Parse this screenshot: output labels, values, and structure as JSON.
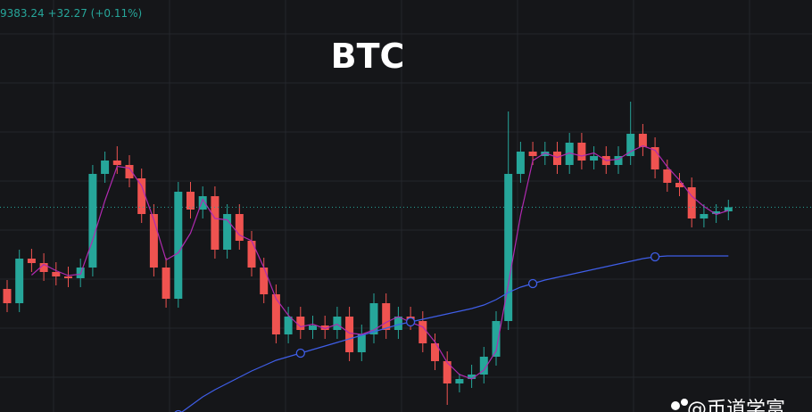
{
  "header": {
    "quote": "9383.24 +32.27 (+0.11%)"
  },
  "watermark": "@币道学富",
  "chart_data": {
    "type": "candlestick",
    "title": "BTC",
    "ylim": [
      8924,
      9848
    ],
    "up_color": "#26a69a",
    "down_color": "#ef5350",
    "grid": true,
    "open": [
      9200,
      9168,
      9268,
      9258,
      9238,
      9228,
      9224,
      9248,
      9458,
      9488,
      9478,
      9448,
      9368,
      9248,
      9178,
      9418,
      9378,
      9408,
      9288,
      9368,
      9308,
      9248,
      9188,
      9098,
      9138,
      9108,
      9118,
      9108,
      9138,
      9058,
      9098,
      9168,
      9108,
      9138,
      9128,
      9078,
      9038,
      8988,
      8998,
      9008,
      9048,
      9128,
      9458,
      9508,
      9498,
      9508,
      9478,
      9528,
      9488,
      9498,
      9478,
      9498,
      9548,
      9518,
      9468,
      9438,
      9428,
      9358,
      9368,
      9374
    ],
    "high": [
      9220,
      9288,
      9290,
      9280,
      9260,
      9250,
      9268,
      9478,
      9508,
      9520,
      9500,
      9470,
      9390,
      9270,
      9440,
      9440,
      9430,
      9430,
      9390,
      9390,
      9330,
      9270,
      9210,
      9160,
      9160,
      9140,
      9140,
      9160,
      9160,
      9120,
      9190,
      9190,
      9160,
      9160,
      9150,
      9100,
      9060,
      9010,
      9030,
      9070,
      9150,
      9598,
      9530,
      9530,
      9530,
      9530,
      9550,
      9550,
      9520,
      9520,
      9520,
      9620,
      9570,
      9540,
      9490,
      9460,
      9450,
      9390,
      9390,
      9400
    ],
    "low": [
      9148,
      9148,
      9238,
      9218,
      9208,
      9204,
      9204,
      9228,
      9438,
      9458,
      9428,
      9348,
      9228,
      9158,
      9158,
      9358,
      9358,
      9268,
      9268,
      9288,
      9228,
      9168,
      9078,
      9078,
      9088,
      9088,
      9088,
      9088,
      9038,
      9038,
      9078,
      9088,
      9088,
      9108,
      9058,
      9018,
      8940,
      8968,
      8978,
      8988,
      9028,
      9108,
      9438,
      9478,
      9478,
      9458,
      9458,
      9468,
      9468,
      9458,
      9458,
      9478,
      9498,
      9448,
      9418,
      9408,
      9338,
      9338,
      9348,
      9354
    ],
    "close": [
      9168,
      9268,
      9258,
      9238,
      9228,
      9224,
      9248,
      9458,
      9488,
      9478,
      9448,
      9368,
      9248,
      9178,
      9418,
      9378,
      9408,
      9288,
      9368,
      9308,
      9248,
      9188,
      9098,
      9138,
      9108,
      9118,
      9108,
      9138,
      9058,
      9098,
      9168,
      9108,
      9138,
      9128,
      9078,
      9038,
      8988,
      8998,
      9008,
      9048,
      9128,
      9458,
      9508,
      9498,
      9508,
      9478,
      9528,
      9488,
      9498,
      9478,
      9498,
      9548,
      9518,
      9468,
      9438,
      9428,
      9358,
      9368,
      9374,
      9383.24
    ],
    "series": [
      {
        "color": "#b02ab0",
        "values": [
          null,
          null,
          9231,
          9255,
          9241,
          9230,
          9233,
          9310,
          9398,
          9475,
          9471,
          9431,
          9355,
          9265,
          9281,
          9325,
          9401,
          9358,
          9355,
          9321,
          9308,
          9248,
          9178,
          9141,
          9115,
          9121,
          9111,
          9121,
          9101,
          9098,
          9108,
          9125,
          9138,
          9125,
          9115,
          9081,
          9035,
          9008,
          8998,
          9018,
          9061,
          9211,
          9365,
          9488,
          9505,
          9495,
          9505,
          9498,
          9505,
          9488,
          9491,
          9508,
          9521,
          9511,
          9474,
          9444,
          9408,
          9385,
          9367,
          9376
        ]
      },
      {
        "color": "#3f5ee8",
        "markers": [
          14,
          24,
          33,
          43,
          53
        ],
        "values": [
          null,
          null,
          null,
          null,
          null,
          null,
          null,
          null,
          null,
          null,
          null,
          null,
          null,
          null,
          8918,
          8938,
          8958,
          8974,
          8988,
          9002,
          9016,
          9028,
          9040,
          9048,
          9056,
          9064,
          9072,
          9080,
          9088,
          9096,
          9104,
          9112,
          9120,
          9126,
          9132,
          9138,
          9144,
          9150,
          9156,
          9164,
          9176,
          9192,
          9204,
          9212,
          9220,
          9226,
          9232,
          9238,
          9244,
          9250,
          9256,
          9262,
          9268,
          9272,
          9274,
          9274,
          9274,
          9274,
          9274,
          9274
        ]
      }
    ]
  }
}
